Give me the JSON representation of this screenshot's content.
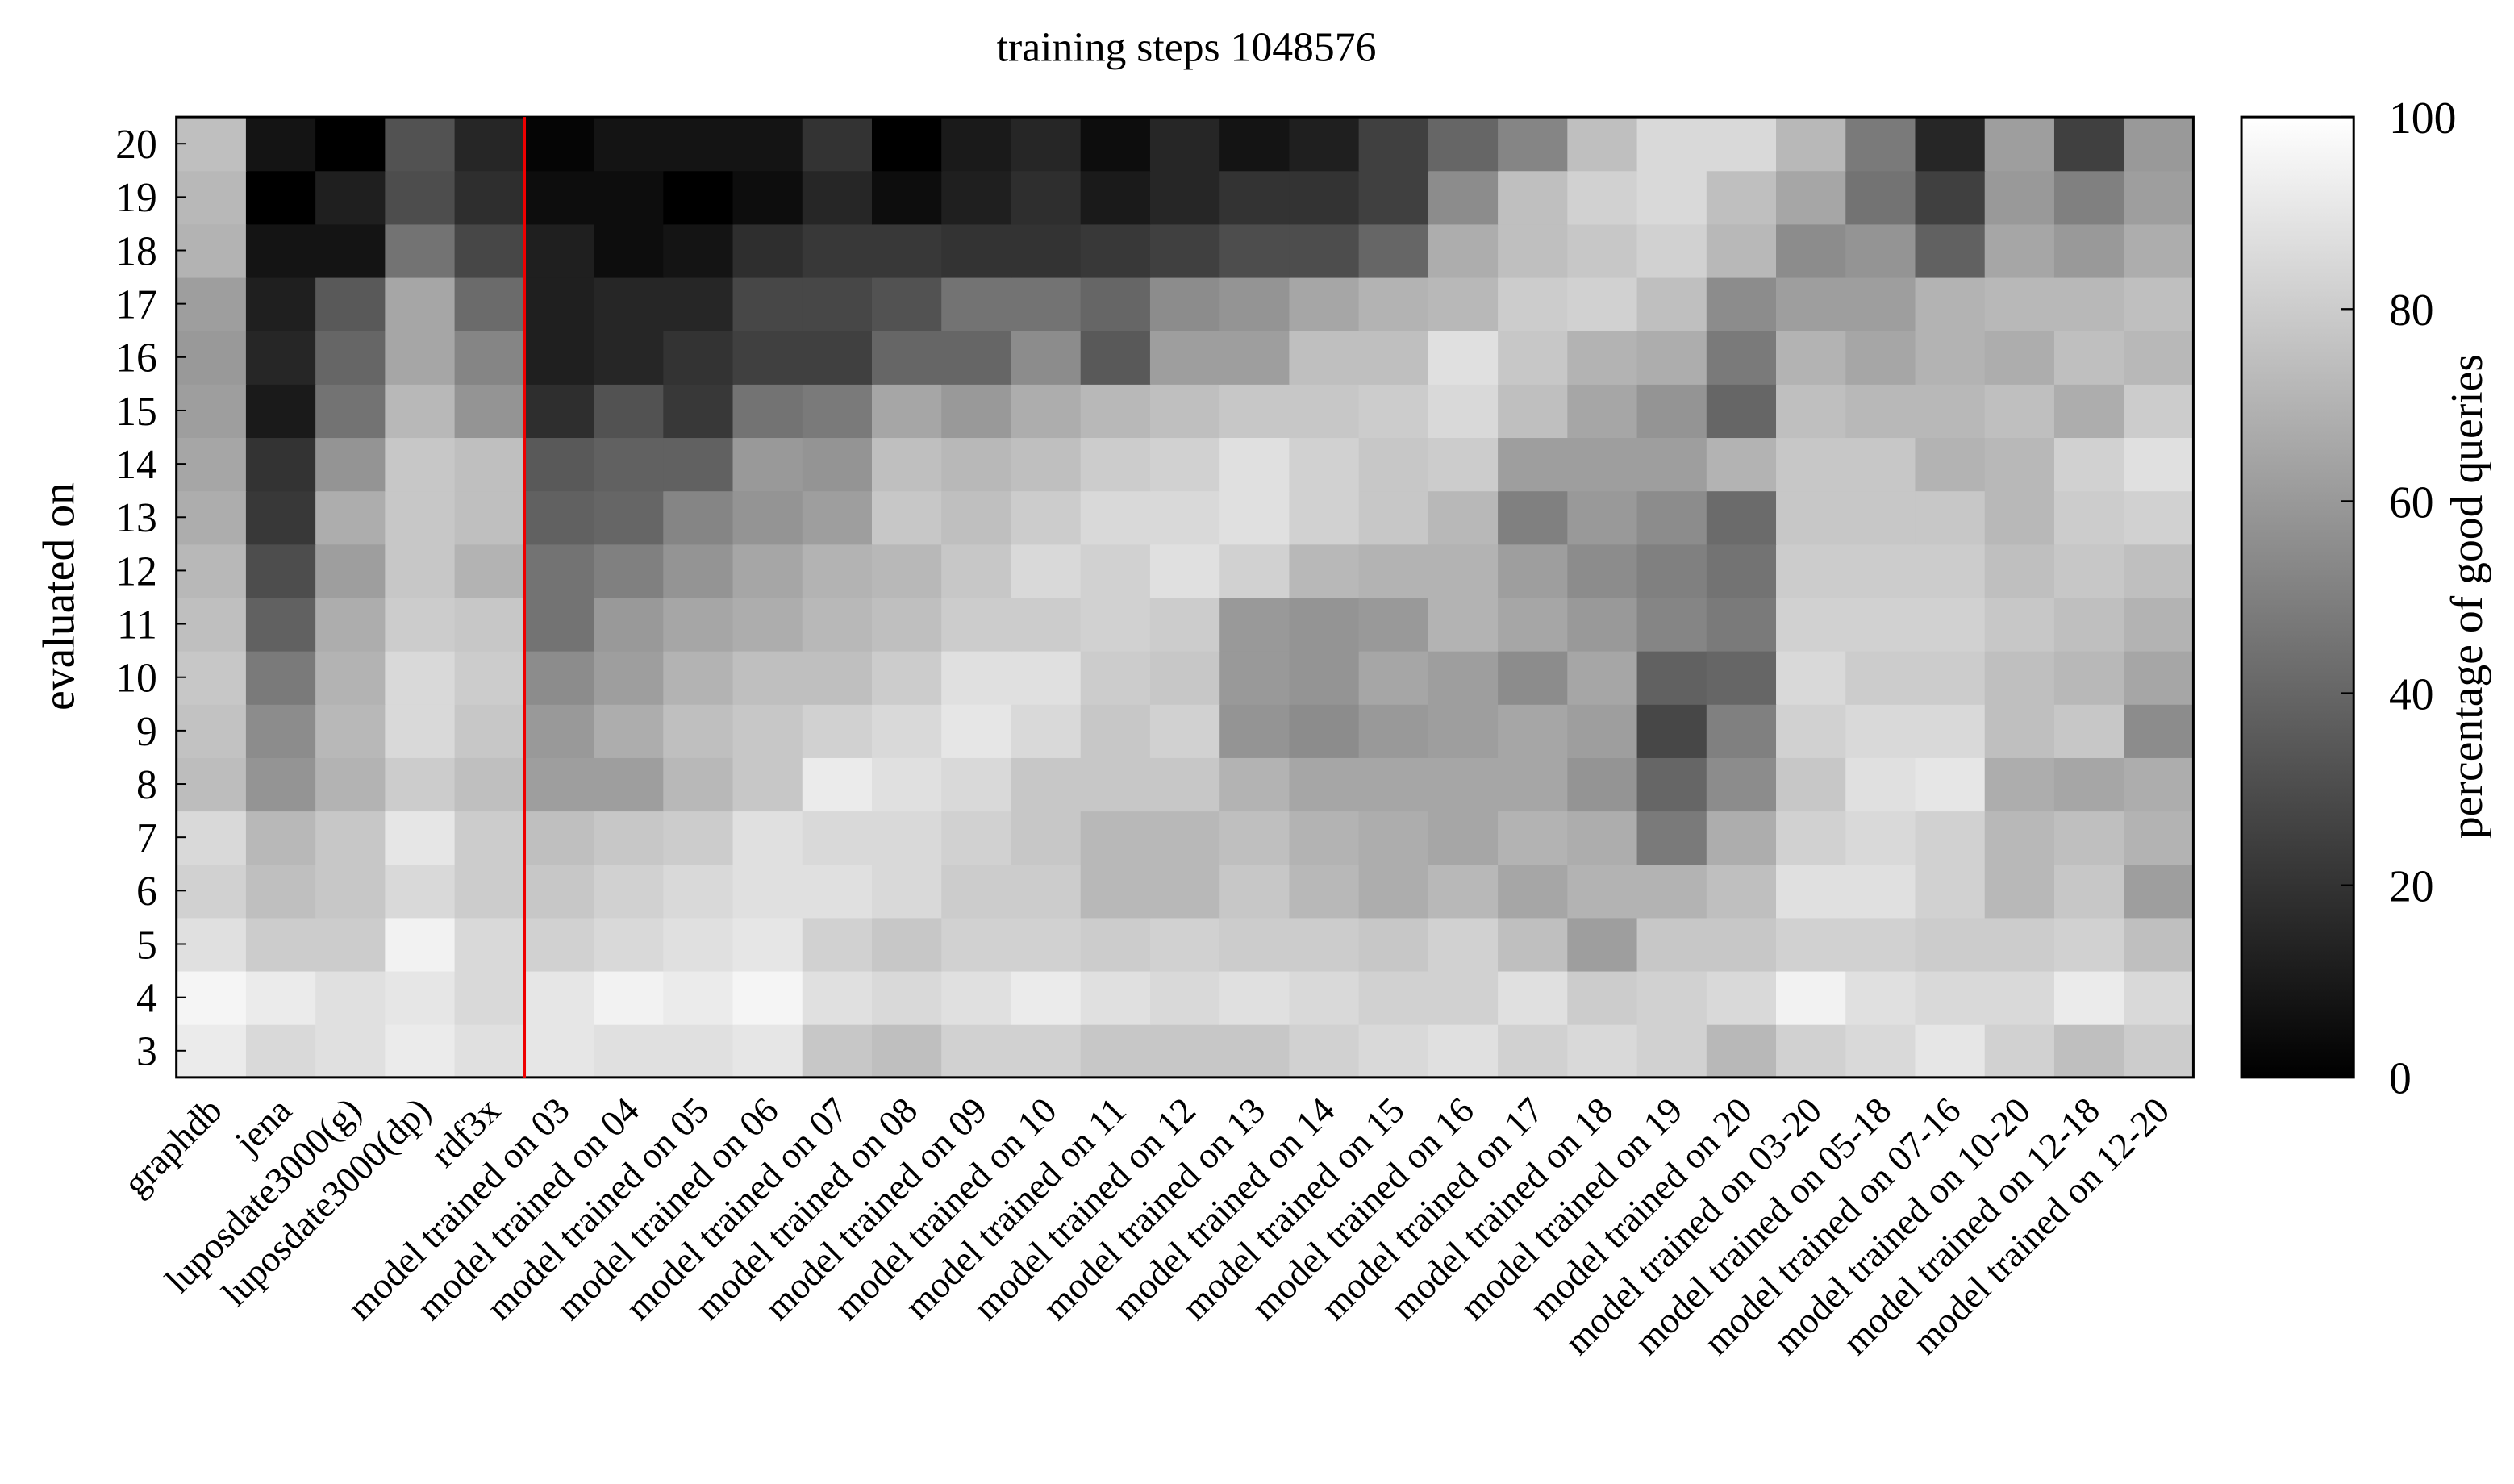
{
  "chart_data": {
    "type": "heatmap",
    "title": "training steps 1048576",
    "y_label": "evaluated on",
    "colorbar_label": "percentage of good queries",
    "x": [
      "graphdb",
      "jena",
      "luposdate3000(g)",
      "luposdate3000(dp)",
      "rdf3x",
      "model trained on 03",
      "model trained on 04",
      "model trained on 05",
      "model trained on 06",
      "model trained on 07",
      "model trained on 08",
      "model trained on 09",
      "model trained on 10",
      "model trained on 11",
      "model trained on 12",
      "model trained on 13",
      "model trained on 14",
      "model trained on 15",
      "model trained on 16",
      "model trained on 17",
      "model trained on 18",
      "model trained on 19",
      "model trained on 20",
      "model trained on 03-20",
      "model trained on 05-18",
      "model trained on 07-16",
      "model trained on 10-20",
      "model trained on 12-18",
      "model trained on 12-20"
    ],
    "y": [
      3,
      4,
      5,
      6,
      7,
      8,
      9,
      10,
      11,
      12,
      13,
      14,
      15,
      16,
      17,
      18,
      19,
      20
    ],
    "values": [
      [
        92,
        85,
        88,
        92,
        88,
        90,
        88,
        88,
        90,
        78,
        75,
        82,
        82,
        78,
        78,
        78,
        82,
        85,
        88,
        82,
        85,
        82,
        72,
        82,
        85,
        90,
        82,
        75,
        80
      ],
      [
        96,
        92,
        88,
        90,
        85,
        90,
        95,
        92,
        96,
        88,
        85,
        88,
        92,
        88,
        85,
        88,
        85,
        82,
        82,
        88,
        80,
        82,
        85,
        95,
        88,
        85,
        85,
        92,
        85
      ],
      [
        88,
        80,
        80,
        95,
        85,
        82,
        85,
        88,
        90,
        82,
        78,
        82,
        82,
        80,
        82,
        80,
        80,
        78,
        82,
        75,
        62,
        78,
        78,
        82,
        82,
        80,
        80,
        82,
        75
      ],
      [
        82,
        75,
        78,
        85,
        80,
        78,
        82,
        85,
        88,
        88,
        85,
        80,
        80,
        72,
        72,
        78,
        72,
        68,
        72,
        65,
        70,
        70,
        75,
        88,
        88,
        82,
        72,
        78,
        62
      ],
      [
        85,
        72,
        78,
        90,
        80,
        75,
        78,
        80,
        88,
        85,
        85,
        82,
        78,
        72,
        72,
        75,
        70,
        68,
        65,
        70,
        68,
        48,
        68,
        82,
        85,
        82,
        72,
        75,
        70
      ],
      [
        74,
        58,
        70,
        80,
        75,
        62,
        62,
        72,
        78,
        92,
        88,
        85,
        78,
        78,
        78,
        70,
        65,
        65,
        65,
        65,
        58,
        40,
        55,
        78,
        88,
        90,
        68,
        65,
        68
      ],
      [
        76,
        55,
        72,
        85,
        78,
        60,
        68,
        75,
        78,
        82,
        85,
        90,
        85,
        78,
        82,
        58,
        55,
        60,
        62,
        65,
        62,
        28,
        50,
        82,
        85,
        85,
        75,
        78,
        55
      ],
      [
        78,
        48,
        70,
        85,
        80,
        55,
        62,
        70,
        75,
        75,
        80,
        88,
        88,
        80,
        78,
        60,
        58,
        65,
        62,
        55,
        65,
        38,
        40,
        85,
        80,
        80,
        75,
        72,
        65
      ],
      [
        75,
        38,
        68,
        80,
        78,
        45,
        60,
        65,
        68,
        72,
        75,
        80,
        80,
        82,
        80,
        60,
        58,
        60,
        70,
        65,
        60,
        52,
        48,
        82,
        82,
        82,
        78,
        75,
        70
      ],
      [
        72,
        30,
        62,
        78,
        70,
        45,
        50,
        58,
        65,
        70,
        72,
        78,
        85,
        82,
        88,
        82,
        72,
        70,
        70,
        62,
        55,
        50,
        45,
        80,
        80,
        80,
        75,
        78,
        75
      ],
      [
        68,
        22,
        68,
        78,
        75,
        38,
        40,
        52,
        58,
        62,
        78,
        75,
        80,
        85,
        85,
        88,
        82,
        78,
        72,
        50,
        60,
        55,
        42,
        78,
        78,
        78,
        72,
        80,
        82
      ],
      [
        65,
        20,
        58,
        78,
        75,
        35,
        38,
        38,
        60,
        58,
        75,
        72,
        75,
        80,
        82,
        88,
        82,
        78,
        80,
        62,
        62,
        62,
        70,
        78,
        78,
        70,
        72,
        82,
        88
      ],
      [
        62,
        10,
        45,
        72,
        58,
        18,
        32,
        22,
        45,
        48,
        65,
        60,
        68,
        72,
        75,
        78,
        78,
        80,
        85,
        75,
        65,
        58,
        40,
        75,
        72,
        72,
        75,
        68,
        80
      ],
      [
        60,
        15,
        40,
        65,
        52,
        12,
        15,
        20,
        25,
        25,
        40,
        40,
        55,
        35,
        62,
        62,
        75,
        75,
        88,
        78,
        70,
        68,
        48,
        70,
        65,
        70,
        68,
        75,
        72
      ],
      [
        62,
        12,
        35,
        65,
        42,
        12,
        15,
        15,
        28,
        28,
        32,
        45,
        45,
        40,
        55,
        58,
        65,
        70,
        72,
        80,
        82,
        75,
        55,
        62,
        62,
        70,
        72,
        72,
        75
      ],
      [
        70,
        8,
        8,
        45,
        28,
        12,
        5,
        8,
        18,
        22,
        22,
        20,
        20,
        22,
        25,
        30,
        30,
        40,
        68,
        75,
        78,
        82,
        72,
        55,
        58,
        38,
        65,
        60,
        68
      ],
      [
        72,
        0,
        12,
        30,
        18,
        5,
        5,
        0,
        5,
        15,
        5,
        12,
        18,
        10,
        15,
        20,
        20,
        25,
        55,
        75,
        82,
        85,
        75,
        65,
        45,
        25,
        60,
        50,
        62
      ],
      [
        75,
        8,
        0,
        32,
        15,
        2,
        8,
        8,
        8,
        20,
        0,
        10,
        15,
        5,
        15,
        8,
        12,
        25,
        40,
        52,
        75,
        85,
        85,
        72,
        48,
        15,
        62,
        25,
        60
      ]
    ],
    "zlim": [
      0,
      100
    ],
    "zticks": [
      0,
      20,
      40,
      60,
      80,
      100
    ]
  }
}
